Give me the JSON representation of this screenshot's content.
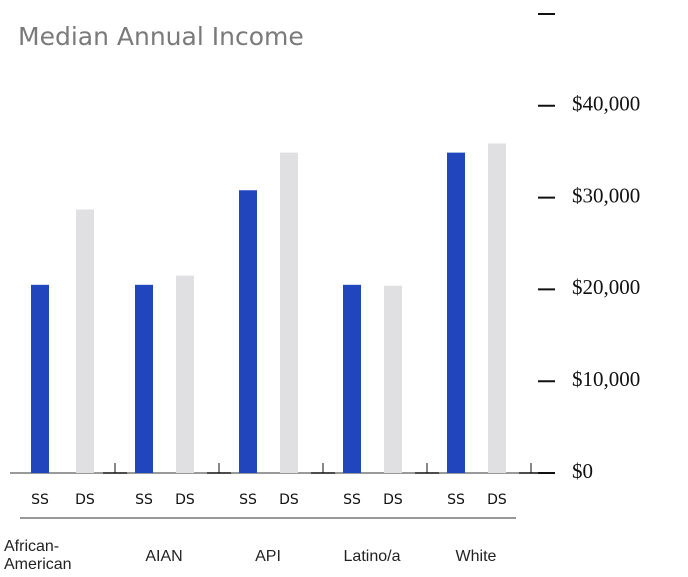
{
  "chart_data": {
    "type": "bar",
    "title": "Median Annual Income",
    "categories": [
      "African-American",
      "AIAN",
      "API",
      "Latino/a",
      "White"
    ],
    "series": [
      {
        "name": "SS",
        "color": "#2045bd",
        "values": [
          20500,
          20500,
          30800,
          20500,
          34900
        ]
      },
      {
        "name": "DS",
        "color": "#e0e0e2",
        "values": [
          28700,
          21500,
          34900,
          20400,
          35900
        ]
      }
    ],
    "ylim": [
      0,
      50000
    ],
    "yticks": [
      {
        "value": 0,
        "label": "$0"
      },
      {
        "value": 10000,
        "label": "$10,000"
      },
      {
        "value": 20000,
        "label": "$20,000"
      },
      {
        "value": 30000,
        "label": "$30,000"
      },
      {
        "value": 40000,
        "label": "$40,000"
      },
      {
        "value": 50000,
        "label": ""
      }
    ]
  }
}
